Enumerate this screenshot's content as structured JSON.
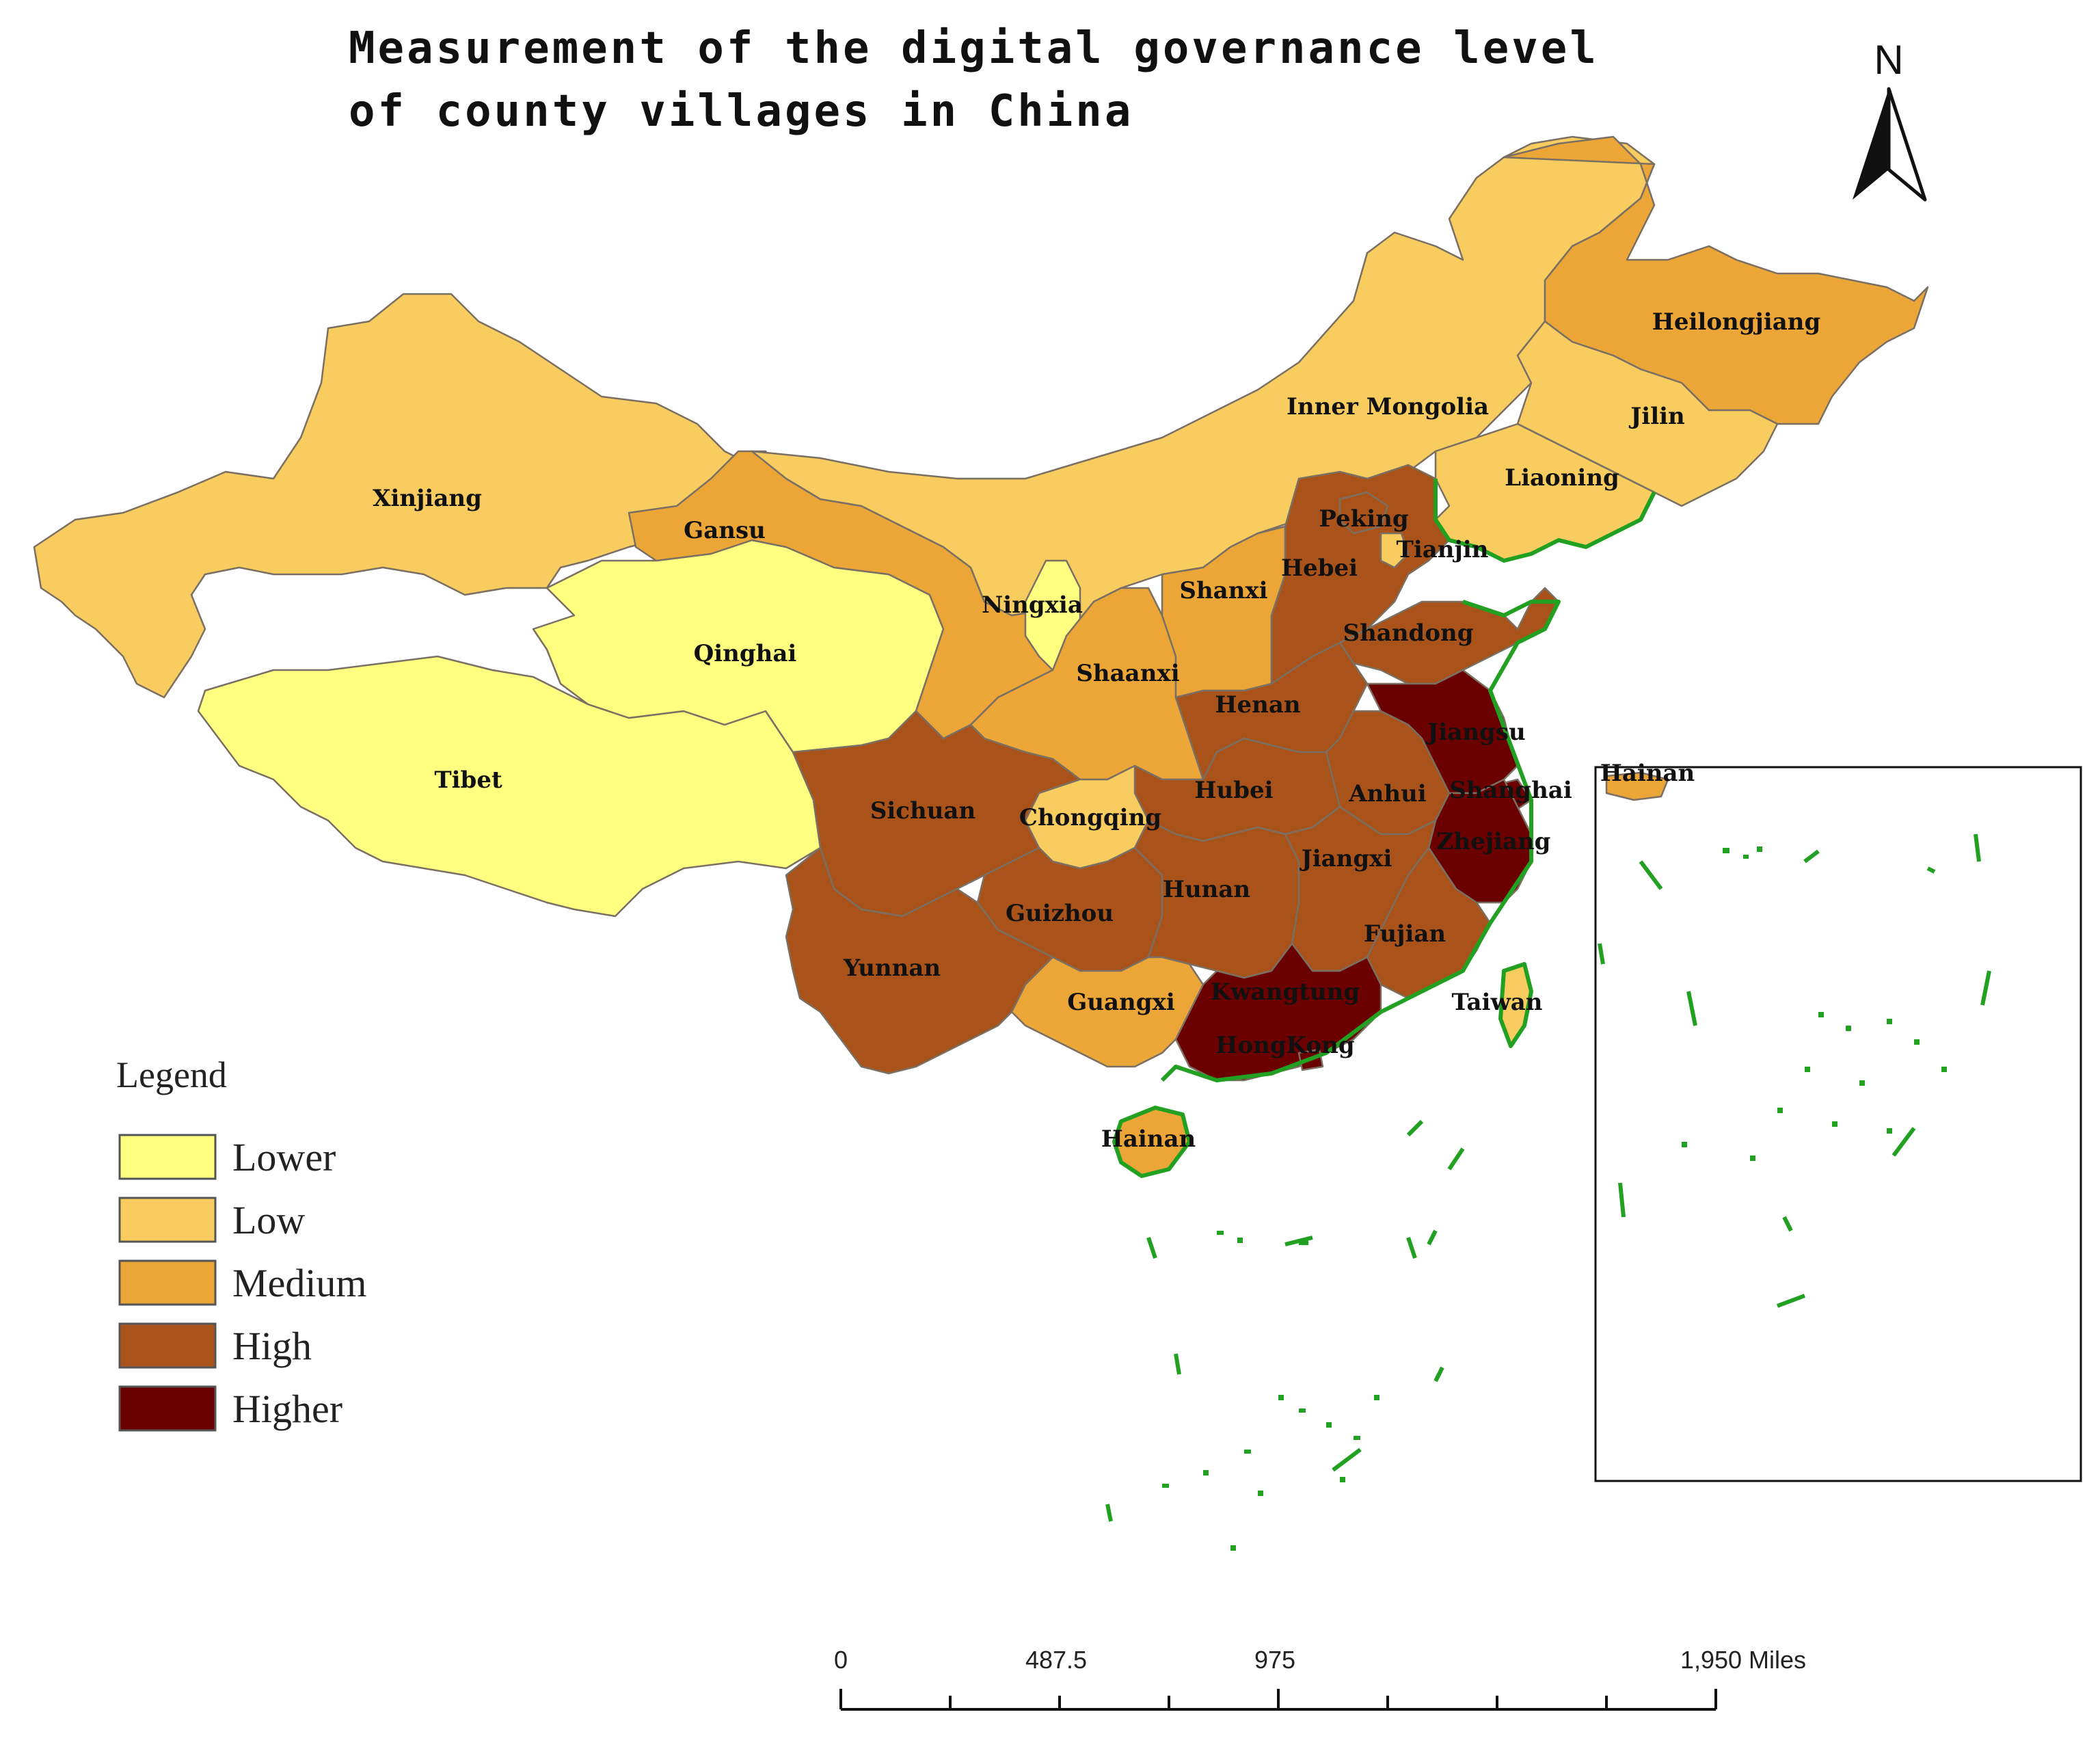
{
  "title": {
    "line1": "Measurement of the digital governance level",
    "line2": "of county villages in China"
  },
  "colors": {
    "lower": "#ffff80",
    "low": "#f8cc5e",
    "medium": "#eba637",
    "high": "#a9531a",
    "higher": "#6b0000",
    "coast": "#22a022"
  },
  "legend": {
    "title": "Legend",
    "items": [
      {
        "label": "Lower",
        "color": "#ffff80"
      },
      {
        "label": "Low",
        "color": "#f8cc5e"
      },
      {
        "label": "Medium",
        "color": "#eba637"
      },
      {
        "label": "High",
        "color": "#a9531a"
      },
      {
        "label": "Higher",
        "color": "#6b0000"
      }
    ]
  },
  "north_arrow": {
    "label": "N",
    "icon": "north-arrow-icon"
  },
  "scale_bar": {
    "labels": [
      "0",
      "487.5",
      "975",
      "1,950 Miles"
    ]
  },
  "regions": {
    "xinjiang": {
      "label": "Xinjiang",
      "level": "Low"
    },
    "tibet": {
      "label": "Tibet",
      "level": "Lower"
    },
    "qinghai": {
      "label": "Qinghai",
      "level": "Lower"
    },
    "gansu": {
      "label": "Gansu",
      "level": "Medium"
    },
    "inner_mongolia": {
      "label": "Inner Mongolia",
      "level": "Low"
    },
    "heilongjiang": {
      "label": "Heilongjiang",
      "level": "Medium"
    },
    "jilin": {
      "label": "Jilin",
      "level": "Low"
    },
    "liaoning": {
      "label": "Liaoning",
      "level": "Low"
    },
    "peking": {
      "label": "Peking",
      "level": "High"
    },
    "tianjin": {
      "label": "Tianjin",
      "level": "Low"
    },
    "hebei": {
      "label": "Hebei",
      "level": "High"
    },
    "shanxi": {
      "label": "Shanxi",
      "level": "Medium"
    },
    "ningxia": {
      "label": "Ningxia",
      "level": "Lower"
    },
    "shaanxi": {
      "label": "Shaanxi",
      "level": "Medium"
    },
    "shandong": {
      "label": "Shandong",
      "level": "High"
    },
    "henan": {
      "label": "Henan",
      "level": "High"
    },
    "jiangsu": {
      "label": "Jiangsu",
      "level": "Higher"
    },
    "shanghai": {
      "label": "Shanghai",
      "level": "Higher"
    },
    "zhejiang": {
      "label": "Zhejiang",
      "level": "Higher"
    },
    "anhui": {
      "label": "Anhui",
      "level": "High"
    },
    "hubei": {
      "label": "Hubei",
      "level": "High"
    },
    "sichuan": {
      "label": "Sichuan",
      "level": "High"
    },
    "chongqing": {
      "label": "Chongqing",
      "level": "Low"
    },
    "guizhou": {
      "label": "Guizhou",
      "level": "High"
    },
    "hunan": {
      "label": "Hunan",
      "level": "High"
    },
    "jiangxi": {
      "label": "Jiangxi",
      "level": "High"
    },
    "fujian": {
      "label": "Fujian",
      "level": "High"
    },
    "yunnan": {
      "label": "Yunnan",
      "level": "High"
    },
    "guangxi": {
      "label": "Guangxi",
      "level": "Medium"
    },
    "kwangtung": {
      "label": "Kwangtung",
      "level": "Higher"
    },
    "hongkong": {
      "label": "HongKong",
      "level": "Higher"
    },
    "taiwan": {
      "label": "Taiwan",
      "level": "Low"
    },
    "hainan": {
      "label": "Hainan",
      "level": "Medium"
    },
    "hainan_inset": {
      "label": "Hainan",
      "level": "Medium"
    }
  }
}
